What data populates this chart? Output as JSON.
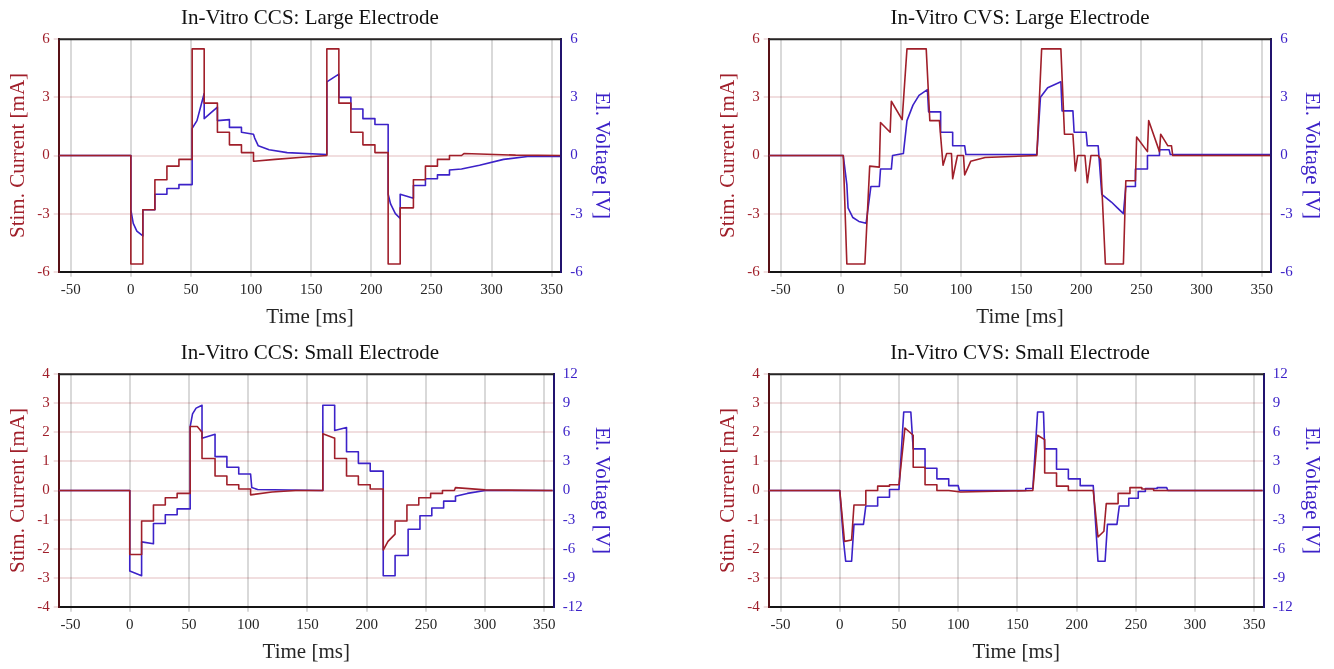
{
  "chart_data": [
    {
      "type": "line",
      "title": "In-Vitro CCS: Large Electrode",
      "xlabel": "Time [ms]",
      "ylabel": "Stim. Current [mA]",
      "y2label": "El. Voltage [V]",
      "xlim": [
        -60,
        358
      ],
      "xticks": [
        -50,
        0,
        50,
        100,
        150,
        200,
        250,
        300,
        350
      ],
      "ylim": [
        -6,
        6
      ],
      "yticks": [
        -6,
        -3,
        0,
        3,
        6
      ],
      "y2lim": [
        -6,
        6
      ],
      "y2ticks": [
        -6,
        -3,
        0,
        3,
        6
      ],
      "grid": true,
      "series": [
        {
          "color": "#a01f2a",
          "x": [
            -60,
            0,
            0,
            10,
            10,
            20,
            20,
            30,
            30,
            40,
            40,
            51,
            51,
            61,
            61,
            72,
            72,
            82,
            82,
            92,
            92,
            102,
            102,
            120,
            140,
            163,
            163,
            173,
            173,
            183,
            183,
            193,
            193,
            203,
            203,
            214,
            214,
            224,
            224,
            235,
            235,
            245,
            245,
            255,
            255,
            265,
            265,
            275,
            277,
            290,
            320,
            357
          ],
          "values": [
            0,
            0,
            -5.6,
            -5.6,
            -2.8,
            -2.8,
            -1.25,
            -1.25,
            -0.55,
            -0.55,
            -0.2,
            -0.2,
            5.5,
            5.5,
            2.7,
            2.7,
            1.2,
            1.2,
            0.55,
            0.55,
            0.15,
            0.15,
            -0.3,
            -0.2,
            -0.1,
            0,
            5.5,
            5.5,
            2.7,
            2.7,
            1.2,
            1.2,
            0.55,
            0.55,
            0.15,
            0.15,
            -5.6,
            -5.6,
            -2.7,
            -2.7,
            -1.25,
            -1.25,
            -0.55,
            -0.55,
            -0.2,
            -0.2,
            0,
            0,
            0.1,
            0.08,
            0.02,
            0
          ]
        },
        {
          "color": "#3c22c8",
          "axis": "y2",
          "x": [
            -60,
            0,
            0,
            2,
            5,
            10,
            10,
            20,
            20,
            30,
            30,
            40,
            40,
            51,
            51,
            55,
            58,
            61,
            61,
            72,
            72,
            82,
            82,
            92,
            92,
            102,
            103,
            106,
            115,
            130,
            163,
            163,
            173,
            173,
            183,
            183,
            193,
            193,
            203,
            203,
            214,
            214,
            216,
            220,
            224,
            224,
            235,
            235,
            245,
            245,
            255,
            255,
            265,
            265,
            275,
            290,
            310,
            330,
            357
          ],
          "values": [
            0,
            0,
            -2.8,
            -3.5,
            -3.9,
            -4.15,
            -2.8,
            -2.8,
            -2.0,
            -2.0,
            -1.7,
            -1.7,
            -1.5,
            -1.5,
            1.4,
            1.8,
            2.5,
            3.2,
            1.9,
            2.5,
            1.8,
            1.85,
            1.45,
            1.45,
            1.2,
            1.1,
            0.9,
            0.5,
            0.3,
            0.15,
            0.05,
            3.8,
            4.2,
            3.0,
            3.0,
            2.4,
            2.4,
            1.9,
            1.9,
            1.6,
            1.6,
            -2.0,
            -2.5,
            -3.0,
            -3.25,
            -2.0,
            -2.2,
            -1.55,
            -1.55,
            -1.2,
            -1.2,
            -1.0,
            -1.0,
            -0.75,
            -0.7,
            -0.5,
            -0.2,
            -0.05,
            -0.05
          ]
        }
      ]
    },
    {
      "type": "line",
      "title": "In-Vitro CVS: Large Electrode",
      "xlabel": "Time [ms]",
      "ylabel": "Stim. Current [mA]",
      "y2label": "El. Voltage [V]",
      "xlim": [
        -60,
        358
      ],
      "xticks": [
        -50,
        0,
        50,
        100,
        150,
        200,
        250,
        300,
        350
      ],
      "ylim": [
        -6,
        6
      ],
      "yticks": [
        -6,
        -3,
        0,
        3,
        6
      ],
      "y2lim": [
        -6,
        6
      ],
      "y2ticks": [
        -6,
        -3,
        0,
        3,
        6
      ],
      "grid": true,
      "series": [
        {
          "color": "#a01f2a",
          "x": [
            -60,
            2,
            5,
            20,
            24,
            32,
            33,
            41,
            42,
            51,
            55,
            71,
            74,
            82,
            83,
            85,
            88,
            92,
            93,
            97,
            102,
            103,
            108,
            120,
            163,
            167,
            183,
            186,
            193,
            195,
            197,
            203,
            205,
            208,
            214,
            216,
            220,
            235,
            237,
            245,
            246,
            255,
            256,
            265,
            266,
            272,
            275,
            276,
            357
          ],
          "values": [
            0,
            0,
            -5.6,
            -5.6,
            -0.55,
            -0.6,
            1.7,
            1.2,
            2.8,
            1.85,
            5.5,
            5.5,
            1.8,
            1.8,
            1.0,
            -0.5,
            0.1,
            0.1,
            -1.2,
            0,
            0,
            -1.0,
            -0.3,
            -0.1,
            0,
            5.5,
            5.5,
            1.1,
            1.1,
            -0.8,
            0,
            0,
            -1.4,
            0,
            0,
            -0.2,
            -5.6,
            -5.6,
            -1.3,
            -1.3,
            0.95,
            0.2,
            1.8,
            0.2,
            1.1,
            0.5,
            0.5,
            0,
            0
          ]
        },
        {
          "color": "#3c22c8",
          "axis": "y2",
          "x": [
            -60,
            2,
            5,
            6,
            10,
            15,
            21,
            25,
            32,
            33,
            42,
            43,
            52,
            55,
            60,
            65,
            72,
            73,
            83,
            83,
            93,
            93,
            103,
            104,
            163,
            166,
            172,
            183,
            184,
            193,
            194,
            204,
            205,
            214,
            217,
            225,
            230,
            235,
            237,
            245,
            245,
            255,
            255,
            265,
            265,
            273,
            274,
            357
          ],
          "values": [
            0,
            0,
            -1.5,
            -2.7,
            -3.2,
            -3.4,
            -3.5,
            -1.6,
            -1.6,
            -0.7,
            -0.7,
            0,
            0.1,
            1.8,
            2.6,
            3.1,
            3.4,
            2.25,
            2.25,
            1.2,
            1.2,
            0.5,
            0.5,
            0.05,
            0.05,
            3.0,
            3.5,
            3.8,
            2.3,
            2.3,
            1.2,
            1.2,
            0.5,
            0.5,
            -2.0,
            -2.4,
            -2.7,
            -3.0,
            -1.6,
            -1.6,
            -0.7,
            -0.7,
            0,
            0,
            0.3,
            0.3,
            0.05,
            0.05
          ]
        }
      ]
    },
    {
      "type": "line",
      "title": "In-Vitro CCS: Small Electrode",
      "xlabel": "Time [ms]",
      "ylabel": "Stim. Current [mA]",
      "y2label": "El. Voltage [V]",
      "xlim": [
        -60,
        358
      ],
      "xticks": [
        -50,
        0,
        50,
        100,
        150,
        200,
        250,
        300,
        350
      ],
      "ylim": [
        -4,
        4
      ],
      "yticks": [
        -4,
        -3,
        -2,
        -1,
        0,
        1,
        2,
        3,
        4
      ],
      "y2lim": [
        -12,
        12
      ],
      "y2ticks": [
        -12,
        -9,
        -6,
        -3,
        0,
        3,
        6,
        9,
        12
      ],
      "grid": true,
      "series": [
        {
          "color": "#a01f2a",
          "x": [
            -60,
            0,
            0,
            10,
            10,
            20,
            20,
            30,
            30,
            40,
            40,
            51,
            51,
            57,
            61,
            61,
            72,
            72,
            82,
            82,
            92,
            92,
            102,
            102,
            120,
            140,
            163,
            163,
            173,
            173,
            183,
            183,
            193,
            193,
            203,
            203,
            214,
            214,
            218,
            224,
            224,
            234,
            234,
            244,
            244,
            254,
            254,
            264,
            264,
            274,
            275,
            300,
            357
          ],
          "values": [
            0,
            0,
            -2.2,
            -2.2,
            -1.05,
            -1.05,
            -0.5,
            -0.5,
            -0.25,
            -0.25,
            -0.1,
            -0.1,
            2.2,
            2.2,
            2.0,
            1.1,
            1.1,
            0.5,
            0.5,
            0.2,
            0.2,
            0.05,
            0.05,
            -0.15,
            -0.05,
            0,
            0,
            1.95,
            1.8,
            1.1,
            1.1,
            0.5,
            0.5,
            0.2,
            0.2,
            0.05,
            0.05,
            -2.05,
            -1.75,
            -1.5,
            -1.05,
            -1.05,
            -0.5,
            -0.5,
            -0.25,
            -0.25,
            -0.1,
            -0.1,
            0,
            0,
            0.1,
            0.02,
            0
          ]
        },
        {
          "color": "#3c22c8",
          "axis": "y2",
          "x": [
            -60,
            0,
            0,
            10,
            10,
            20,
            20,
            30,
            30,
            40,
            40,
            51,
            51,
            53,
            56,
            61,
            61,
            72,
            72,
            82,
            82,
            92,
            92,
            102,
            103,
            108,
            163,
            163,
            173,
            173,
            183,
            183,
            193,
            193,
            203,
            203,
            214,
            214,
            224,
            224,
            235,
            235,
            245,
            245,
            255,
            255,
            265,
            265,
            275,
            275,
            285,
            300,
            357
          ],
          "values": [
            0,
            0,
            -8.3,
            -8.8,
            -5.3,
            -5.5,
            -3.4,
            -3.4,
            -2.5,
            -2.5,
            -1.9,
            -1.9,
            6.6,
            7.9,
            8.5,
            8.8,
            5.4,
            5.8,
            3.5,
            3.5,
            2.4,
            2.4,
            1.7,
            1.7,
            0.3,
            0.1,
            0,
            8.8,
            8.8,
            6.2,
            6.5,
            4.0,
            4.0,
            2.8,
            2.8,
            2.0,
            2.0,
            -8.8,
            -8.8,
            -6.7,
            -6.7,
            -4.0,
            -4.0,
            -2.6,
            -2.6,
            -1.8,
            -1.8,
            -1.1,
            -1.1,
            -0.6,
            -0.3,
            0,
            0
          ]
        }
      ]
    },
    {
      "type": "line",
      "title": "In-Vitro CVS: Small Electrode",
      "xlabel": "Time [ms]",
      "ylabel": "Stim. Current [mA]",
      "y2label": "El. Voltage [V]",
      "xlim": [
        -60,
        358
      ],
      "xticks": [
        -50,
        0,
        50,
        100,
        150,
        200,
        250,
        300,
        350
      ],
      "ylim": [
        -4,
        4
      ],
      "yticks": [
        -4,
        -3,
        -2,
        -1,
        0,
        1,
        2,
        3,
        4
      ],
      "y2lim": [
        -12,
        12
      ],
      "y2ticks": [
        -12,
        -9,
        -6,
        -3,
        0,
        3,
        6,
        9,
        12
      ],
      "grid": true,
      "series": [
        {
          "color": "#a01f2a",
          "x": [
            -60,
            0,
            4,
            10,
            12,
            22,
            22,
            32,
            32,
            42,
            42,
            50,
            55,
            62,
            62,
            72,
            72,
            82,
            82,
            92,
            102,
            163,
            167,
            173,
            173,
            183,
            183,
            193,
            193,
            214,
            218,
            223,
            225,
            235,
            235,
            245,
            245,
            255,
            255,
            265,
            265,
            357
          ],
          "values": [
            0,
            0,
            -1.75,
            -1.7,
            -0.5,
            -0.5,
            0,
            0,
            0.15,
            0.15,
            0.2,
            0.2,
            2.15,
            1.9,
            0.8,
            0.8,
            0.2,
            0.2,
            0,
            0,
            -0.05,
            0,
            1.9,
            1.75,
            0.6,
            0.6,
            0.15,
            0.15,
            0,
            0,
            -1.6,
            -1.4,
            -0.45,
            -0.45,
            -0.1,
            -0.1,
            0.1,
            0.1,
            0.05,
            0.05,
            0,
            0
          ]
        },
        {
          "color": "#3c22c8",
          "axis": "y2",
          "x": [
            -60,
            0,
            3,
            5,
            10,
            12,
            20,
            22,
            32,
            32,
            42,
            42,
            50,
            54,
            60,
            62,
            72,
            72,
            82,
            82,
            92,
            92,
            100,
            101,
            157,
            157,
            163,
            167,
            172,
            173,
            183,
            183,
            193,
            193,
            203,
            203,
            214,
            218,
            224,
            226,
            234,
            236,
            244,
            244,
            252,
            252,
            258,
            258,
            268,
            268,
            276,
            277,
            357
          ],
          "values": [
            0,
            0,
            -5,
            -7.3,
            -7.3,
            -3.5,
            -3.5,
            -1.6,
            -1.6,
            -0.7,
            -0.7,
            0.1,
            0.1,
            8.1,
            8.1,
            4.3,
            4.3,
            2.3,
            2.3,
            1.2,
            1.2,
            0.5,
            0.5,
            0,
            0,
            0.2,
            0.2,
            8.1,
            8.1,
            4.3,
            4.3,
            2.2,
            2.2,
            1.2,
            1.2,
            0.5,
            0.5,
            -7.3,
            -7.3,
            -3.5,
            -3.5,
            -1.6,
            -1.6,
            -0.8,
            -0.8,
            -0.1,
            -0.1,
            0.2,
            0.2,
            0.3,
            0.3,
            0,
            0
          ]
        }
      ]
    }
  ]
}
